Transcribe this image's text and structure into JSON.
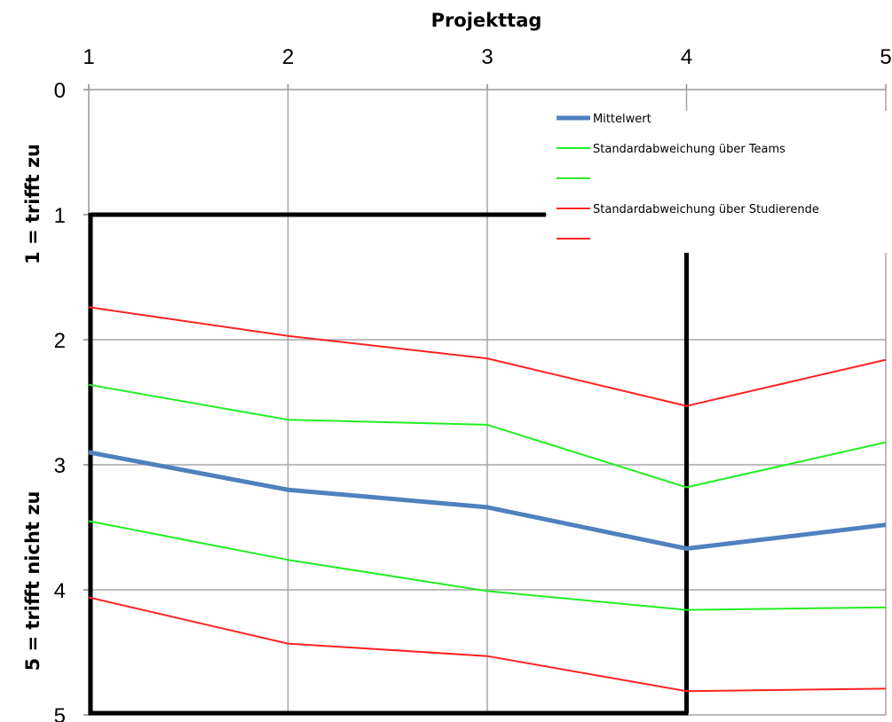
{
  "chart_data": {
    "type": "line",
    "x_axis": {
      "title": "Projekttag",
      "position": "top",
      "ticks": [
        1,
        2,
        3,
        4,
        5
      ],
      "range": [
        1,
        5
      ]
    },
    "y_axis": {
      "title_top": "1 = trifft zu",
      "title_bottom": "5 = trifft nicht zu",
      "ticks": [
        0,
        1,
        2,
        3,
        4,
        5
      ],
      "range": [
        0,
        5
      ],
      "inverted": true
    },
    "grid": true,
    "x": [
      1,
      2,
      3,
      4,
      5
    ],
    "series": [
      {
        "name": "Mittelwert",
        "color": "#4f81bd",
        "width": 5,
        "values": [
          2.9,
          3.2,
          3.34,
          3.67,
          3.48
        ]
      },
      {
        "name": "Standardabweichung über Teams",
        "color": "#22ee22",
        "width": 2,
        "values": [
          2.36,
          2.64,
          2.68,
          3.18,
          2.82
        ]
      },
      {
        "name": "",
        "color": "#22ee22",
        "width": 2,
        "values": [
          3.45,
          3.76,
          4.01,
          4.16,
          4.14
        ]
      },
      {
        "name": "Standardabweichung über Studierende",
        "color": "#ff2222",
        "width": 2,
        "values": [
          1.74,
          1.97,
          2.15,
          2.53,
          2.16
        ]
      },
      {
        "name": "",
        "color": "#ff2222",
        "width": 2,
        "values": [
          4.06,
          4.43,
          4.53,
          4.81,
          4.79
        ]
      }
    ],
    "box": {
      "color": "#000000",
      "x_range": [
        1,
        4
      ],
      "y_range": [
        1,
        5
      ]
    },
    "legend": {
      "placement": "top-right"
    }
  }
}
